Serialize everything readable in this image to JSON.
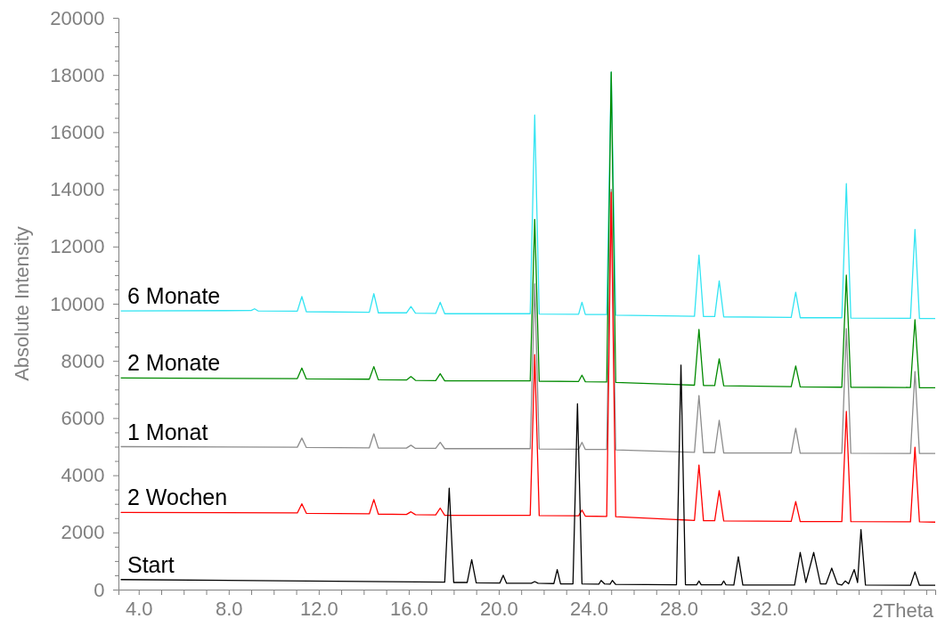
{
  "chart_data": {
    "type": "line",
    "ylabel": "Absolute Intensity",
    "xlabel": "2Theta",
    "xlim": [
      3.1,
      39.4
    ],
    "ylim": [
      0,
      20000
    ],
    "xticks": [
      {
        "value": 4,
        "label": "4.0"
      },
      {
        "value": 5,
        "label": null
      },
      {
        "value": 6,
        "label": null
      },
      {
        "value": 7,
        "label": null
      },
      {
        "value": 8,
        "label": "8.0"
      },
      {
        "value": 9,
        "label": null
      },
      {
        "value": 10,
        "label": null
      },
      {
        "value": 11,
        "label": null
      },
      {
        "value": 12,
        "label": "12.0"
      },
      {
        "value": 13,
        "label": null
      },
      {
        "value": 14,
        "label": null
      },
      {
        "value": 15,
        "label": null
      },
      {
        "value": 16,
        "label": "16.0"
      },
      {
        "value": 17,
        "label": null
      },
      {
        "value": 18,
        "label": null
      },
      {
        "value": 19,
        "label": null
      },
      {
        "value": 20,
        "label": "20.0"
      },
      {
        "value": 21,
        "label": null
      },
      {
        "value": 22,
        "label": null
      },
      {
        "value": 23,
        "label": null
      },
      {
        "value": 24,
        "label": "24.0"
      },
      {
        "value": 25,
        "label": null
      },
      {
        "value": 26,
        "label": null
      },
      {
        "value": 27,
        "label": null
      },
      {
        "value": 28,
        "label": "28.0"
      },
      {
        "value": 29,
        "label": null
      },
      {
        "value": 30,
        "label": null
      },
      {
        "value": 31,
        "label": null
      },
      {
        "value": 32,
        "label": "32.0"
      },
      {
        "value": 33,
        "label": null
      },
      {
        "value": 34,
        "label": null
      },
      {
        "value": 35,
        "label": null
      },
      {
        "value": 36,
        "label": null
      },
      {
        "value": 37,
        "label": null
      },
      {
        "value": 38,
        "label": null
      },
      {
        "value": 39,
        "label": null
      }
    ],
    "yticks": [
      0,
      {
        "value": 500,
        "label": null
      },
      {
        "value": 1000,
        "label": null
      },
      {
        "value": 1500,
        "label": null
      },
      2000,
      {
        "value": 2500,
        "label": null
      },
      {
        "value": 3000,
        "label": null
      },
      {
        "value": 3500,
        "label": null
      },
      4000,
      {
        "value": 4500,
        "label": null
      },
      {
        "value": 5000,
        "label": null
      },
      {
        "value": 5500,
        "label": null
      },
      6000,
      {
        "value": 6500,
        "label": null
      },
      {
        "value": 7000,
        "label": null
      },
      {
        "value": 7500,
        "label": null
      },
      8000,
      {
        "value": 8500,
        "label": null
      },
      {
        "value": 9000,
        "label": null
      },
      {
        "value": 9500,
        "label": null
      },
      10000,
      {
        "value": 10500,
        "label": null
      },
      {
        "value": 11000,
        "label": null
      },
      {
        "value": 11500,
        "label": null
      },
      12000,
      {
        "value": 12500,
        "label": null
      },
      {
        "value": 13000,
        "label": null
      },
      {
        "value": 13500,
        "label": null
      },
      14000,
      {
        "value": 14500,
        "label": null
      },
      {
        "value": 15000,
        "label": null
      },
      {
        "value": 15500,
        "label": null
      },
      16000,
      {
        "value": 16500,
        "label": null
      },
      {
        "value": 17000,
        "label": null
      },
      {
        "value": 17500,
        "label": null
      },
      18000,
      {
        "value": 18500,
        "label": null
      },
      {
        "value": 19000,
        "label": null
      },
      {
        "value": 19500,
        "label": null
      },
      20000
    ],
    "grid": false,
    "legend": false,
    "marker": "none",
    "line_style": "solid",
    "series": [
      {
        "name": "6 Monate",
        "color": "#33e4f2",
        "x": [
          3.2,
          9.0,
          9.15,
          9.3,
          11.05,
          11.25,
          11.45,
          14.25,
          14.45,
          14.65,
          15.9,
          16.1,
          16.3,
          17.2,
          17.4,
          17.6,
          21.4,
          21.6,
          21.8,
          23.55,
          23.7,
          23.85,
          24.8,
          25.0,
          25.2,
          28.7,
          28.9,
          29.1,
          29.6,
          29.8,
          30.0,
          33.0,
          33.2,
          33.4,
          35.25,
          35.45,
          35.65,
          38.3,
          38.5,
          38.7,
          39.4
        ],
        "values": [
          9750,
          9760,
          9820,
          9750,
          9740,
          10250,
          9720,
          9700,
          10350,
          9680,
          9680,
          9900,
          9670,
          9660,
          10050,
          9650,
          9650,
          16600,
          9640,
          9630,
          10050,
          9620,
          9620,
          18100,
          9600,
          9560,
          11700,
          9550,
          9550,
          10800,
          9540,
          9520,
          10400,
          9510,
          9510,
          14200,
          9500,
          9490,
          12600,
          9480,
          9480
        ]
      },
      {
        "name": "2 Monate",
        "color": "#008a00",
        "x": [
          3.2,
          11.05,
          11.25,
          11.45,
          14.25,
          14.45,
          14.65,
          15.9,
          16.1,
          16.3,
          17.2,
          17.4,
          17.6,
          21.4,
          21.6,
          21.8,
          23.55,
          23.7,
          23.85,
          24.8,
          25.0,
          25.2,
          28.7,
          28.9,
          29.1,
          29.6,
          29.8,
          30.0,
          33.0,
          33.2,
          33.4,
          35.25,
          35.45,
          35.65,
          38.3,
          38.5,
          38.7,
          39.4
        ],
        "values": [
          7400,
          7380,
          7750,
          7370,
          7360,
          7800,
          7340,
          7330,
          7450,
          7320,
          7310,
          7550,
          7300,
          7300,
          12950,
          7290,
          7280,
          7500,
          7270,
          7260,
          18100,
          7250,
          7150,
          9100,
          7140,
          7140,
          8070,
          7130,
          7100,
          7820,
          7090,
          7080,
          11000,
          7080,
          7070,
          9440,
          7060,
          7060
        ]
      },
      {
        "name": "1 Monat",
        "color": "#8c8c8c",
        "x": [
          3.2,
          11.05,
          11.25,
          11.45,
          14.25,
          14.45,
          14.65,
          15.9,
          16.1,
          16.3,
          17.2,
          17.4,
          17.6,
          21.4,
          21.6,
          21.8,
          23.55,
          23.7,
          23.85,
          24.8,
          25.0,
          25.2,
          28.7,
          28.9,
          29.1,
          29.6,
          29.8,
          30.0,
          33.0,
          33.2,
          33.4,
          35.25,
          35.45,
          35.65,
          38.3,
          38.5,
          38.7,
          39.4
        ],
        "values": [
          5000,
          4980,
          5300,
          4970,
          4960,
          5450,
          4950,
          4950,
          5050,
          4940,
          4940,
          5150,
          4930,
          4930,
          10700,
          4920,
          4910,
          5150,
          4900,
          4900,
          14000,
          4890,
          4800,
          6790,
          4790,
          4790,
          5920,
          4780,
          4780,
          5640,
          4770,
          4770,
          9130,
          4770,
          4760,
          7630,
          4760,
          4760
        ]
      },
      {
        "name": "2 Wochen",
        "color": "#ff0000",
        "x": [
          3.2,
          11.05,
          11.25,
          11.45,
          14.25,
          14.45,
          14.65,
          15.9,
          16.1,
          16.3,
          17.2,
          17.4,
          17.6,
          21.4,
          21.6,
          21.8,
          23.55,
          23.7,
          23.85,
          24.8,
          25.0,
          25.2,
          28.7,
          28.9,
          29.1,
          29.6,
          29.8,
          30.0,
          33.0,
          33.2,
          33.4,
          35.25,
          35.45,
          35.65,
          38.3,
          38.5,
          38.7,
          39.4
        ],
        "values": [
          2700,
          2680,
          3000,
          2670,
          2650,
          3150,
          2640,
          2630,
          2720,
          2620,
          2610,
          2850,
          2600,
          2600,
          8220,
          2590,
          2580,
          2780,
          2570,
          2560,
          13900,
          2550,
          2420,
          4360,
          2410,
          2410,
          3460,
          2400,
          2390,
          3080,
          2380,
          2380,
          6230,
          2380,
          2370,
          4980,
          2370,
          2360
        ]
      },
      {
        "name": "Start",
        "color": "#000000",
        "x": [
          3.2,
          17.6,
          17.8,
          18.0,
          18.6,
          18.8,
          19.0,
          20.05,
          20.2,
          20.35,
          21.45,
          21.6,
          21.75,
          22.45,
          22.6,
          22.75,
          23.3,
          23.5,
          23.7,
          24.45,
          24.55,
          24.7,
          24.95,
          25.05,
          25.2,
          27.9,
          28.1,
          28.3,
          28.8,
          28.9,
          29.0,
          29.9,
          30.0,
          30.1,
          30.45,
          30.65,
          30.85,
          33.15,
          33.4,
          33.65,
          34.0,
          34.3,
          34.55,
          34.8,
          35.05,
          35.25,
          35.4,
          35.55,
          35.8,
          35.95,
          36.1,
          36.3,
          38.3,
          38.5,
          38.7,
          39.4
        ],
        "values": [
          350,
          260,
          3550,
          250,
          250,
          1050,
          240,
          230,
          500,
          220,
          220,
          280,
          220,
          210,
          700,
          200,
          200,
          6500,
          200,
          190,
          320,
          200,
          190,
          320,
          180,
          170,
          7850,
          170,
          170,
          300,
          170,
          170,
          300,
          170,
          160,
          1150,
          160,
          160,
          1300,
          250,
          1300,
          200,
          200,
          750,
          200,
          160,
          300,
          200,
          700,
          250,
          2100,
          160,
          150,
          620,
          150,
          150
        ]
      }
    ]
  }
}
